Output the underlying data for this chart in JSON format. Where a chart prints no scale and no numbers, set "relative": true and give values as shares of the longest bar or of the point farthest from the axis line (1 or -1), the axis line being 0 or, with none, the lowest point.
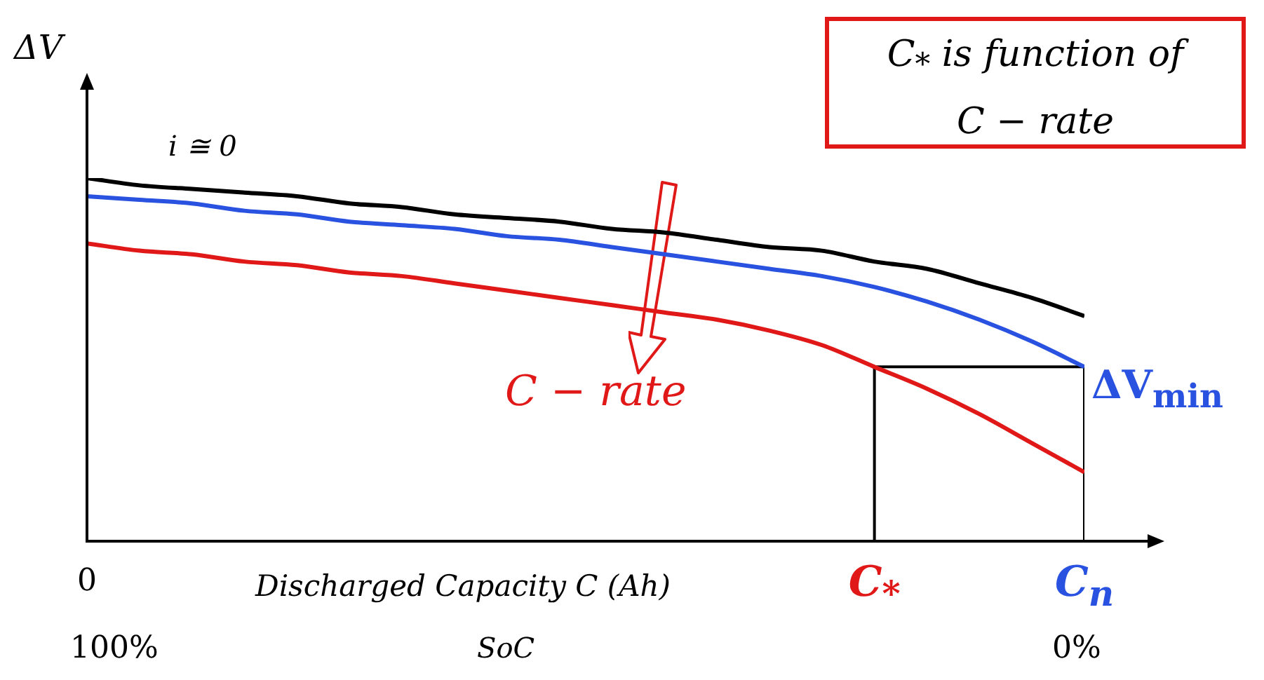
{
  "chart_data": {
    "type": "line",
    "relative": true,
    "ylabel": "ΔV",
    "xlabel": "Discharged Capacity C (Ah)",
    "legend": false,
    "marker": "none",
    "line_style": "solid",
    "categories": [
      "0",
      null,
      null,
      null,
      null,
      null,
      null,
      null,
      null,
      null,
      null,
      null,
      null,
      null,
      null,
      "C$_{*}$",
      null,
      null,
      null,
      "C$_{n}$"
    ],
    "series": [
      {
        "color": "#000000",
        "values": [
          1.0,
          0.98,
          0.97,
          0.96,
          0.95,
          0.93,
          0.92,
          0.9,
          0.89,
          0.88,
          0.86,
          0.85,
          0.83,
          0.81,
          0.8,
          0.77,
          0.75,
          0.71,
          0.67,
          0.62
        ]
      },
      {
        "color": "#2a52e0",
        "values": [
          0.95,
          0.94,
          0.93,
          0.91,
          0.9,
          0.88,
          0.87,
          0.86,
          0.84,
          0.83,
          0.81,
          0.79,
          0.77,
          0.75,
          0.73,
          0.7,
          0.66,
          0.61,
          0.55,
          0.48
        ]
      },
      {
        "color": "#e01818",
        "values": [
          0.82,
          0.8,
          0.79,
          0.77,
          0.76,
          0.74,
          0.73,
          0.71,
          0.69,
          0.67,
          0.65,
          0.63,
          0.61,
          0.58,
          0.54,
          0.48,
          0.42,
          0.35,
          0.27,
          0.19
        ]
      },
      {
        "type": "line",
        "color": "#000000",
        "x": [
          "C$_{*}$",
          "C$_{*}$",
          "C$_{n}$",
          "C$_{n}$"
        ],
        "values": [
          0,
          0.48,
          0.48,
          0
        ]
      }
    ],
    "annotations": [
      "i ≅ 0",
      "C − rate",
      "ΔV$_{min}$",
      "C$_{*}$ is function of C − rate",
      "SoC",
      "100%",
      "0%"
    ]
  }
}
